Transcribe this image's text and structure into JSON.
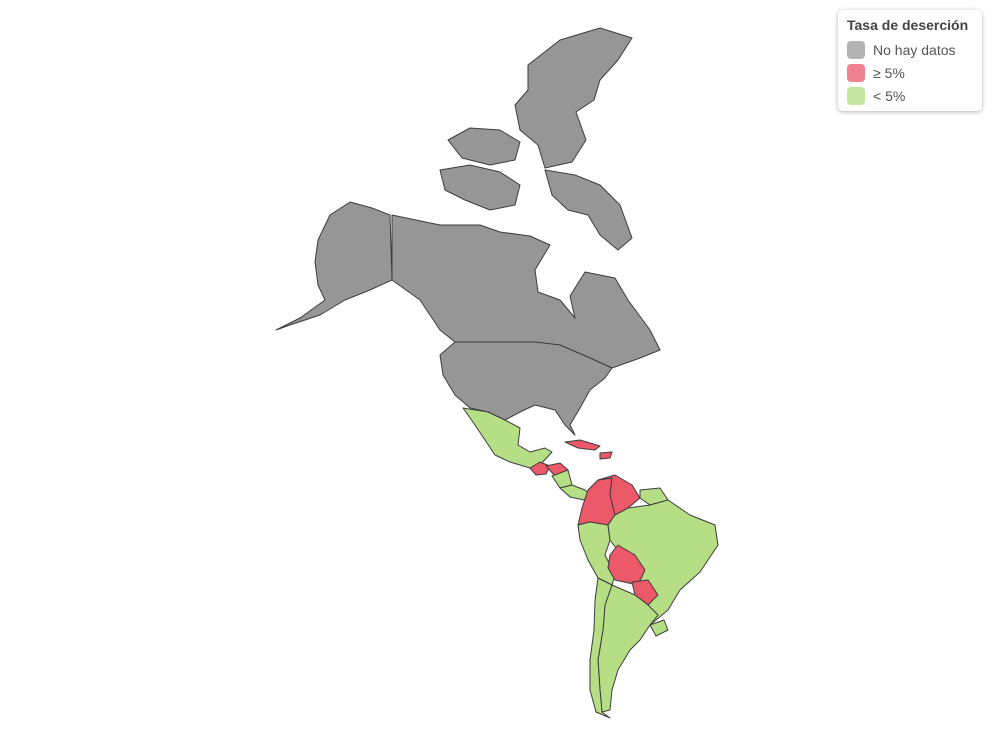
{
  "legend": {
    "title": "Tasa de deserción",
    "items": [
      {
        "label": "No hay datos",
        "color": "#b3b3b3"
      },
      {
        "label": "≥ 5%",
        "color": "#f0818f"
      },
      {
        "label": "< 5%",
        "color": "#c3e6a3"
      }
    ]
  },
  "colors": {
    "no_data": "#969696",
    "high": "#ec5968",
    "low": "#b5de85",
    "border": "#3d3d3d",
    "background": "#ffffff"
  },
  "regions": [
    {
      "name": "Canada",
      "category": "no_data"
    },
    {
      "name": "United States",
      "category": "no_data"
    },
    {
      "name": "Greenland",
      "category": "no_data"
    },
    {
      "name": "Mexico",
      "category": "low"
    },
    {
      "name": "Guatemala",
      "category": "high"
    },
    {
      "name": "Honduras",
      "category": "high"
    },
    {
      "name": "Nicaragua",
      "category": "low"
    },
    {
      "name": "Costa Rica",
      "category": "low"
    },
    {
      "name": "Panama",
      "category": "low"
    },
    {
      "name": "Cuba",
      "category": "high"
    },
    {
      "name": "Hispaniola",
      "category": "high"
    },
    {
      "name": "Colombia",
      "category": "high"
    },
    {
      "name": "Venezuela",
      "category": "high"
    },
    {
      "name": "Guyana",
      "category": "low"
    },
    {
      "name": "Suriname",
      "category": "low"
    },
    {
      "name": "French Guiana",
      "category": "no_data"
    },
    {
      "name": "Ecuador",
      "category": "low"
    },
    {
      "name": "Peru",
      "category": "low"
    },
    {
      "name": "Brazil",
      "category": "low"
    },
    {
      "name": "Bolivia",
      "category": "high"
    },
    {
      "name": "Paraguay",
      "category": "high"
    },
    {
      "name": "Chile",
      "category": "low"
    },
    {
      "name": "Argentina",
      "category": "low"
    },
    {
      "name": "Uruguay",
      "category": "low"
    }
  ]
}
